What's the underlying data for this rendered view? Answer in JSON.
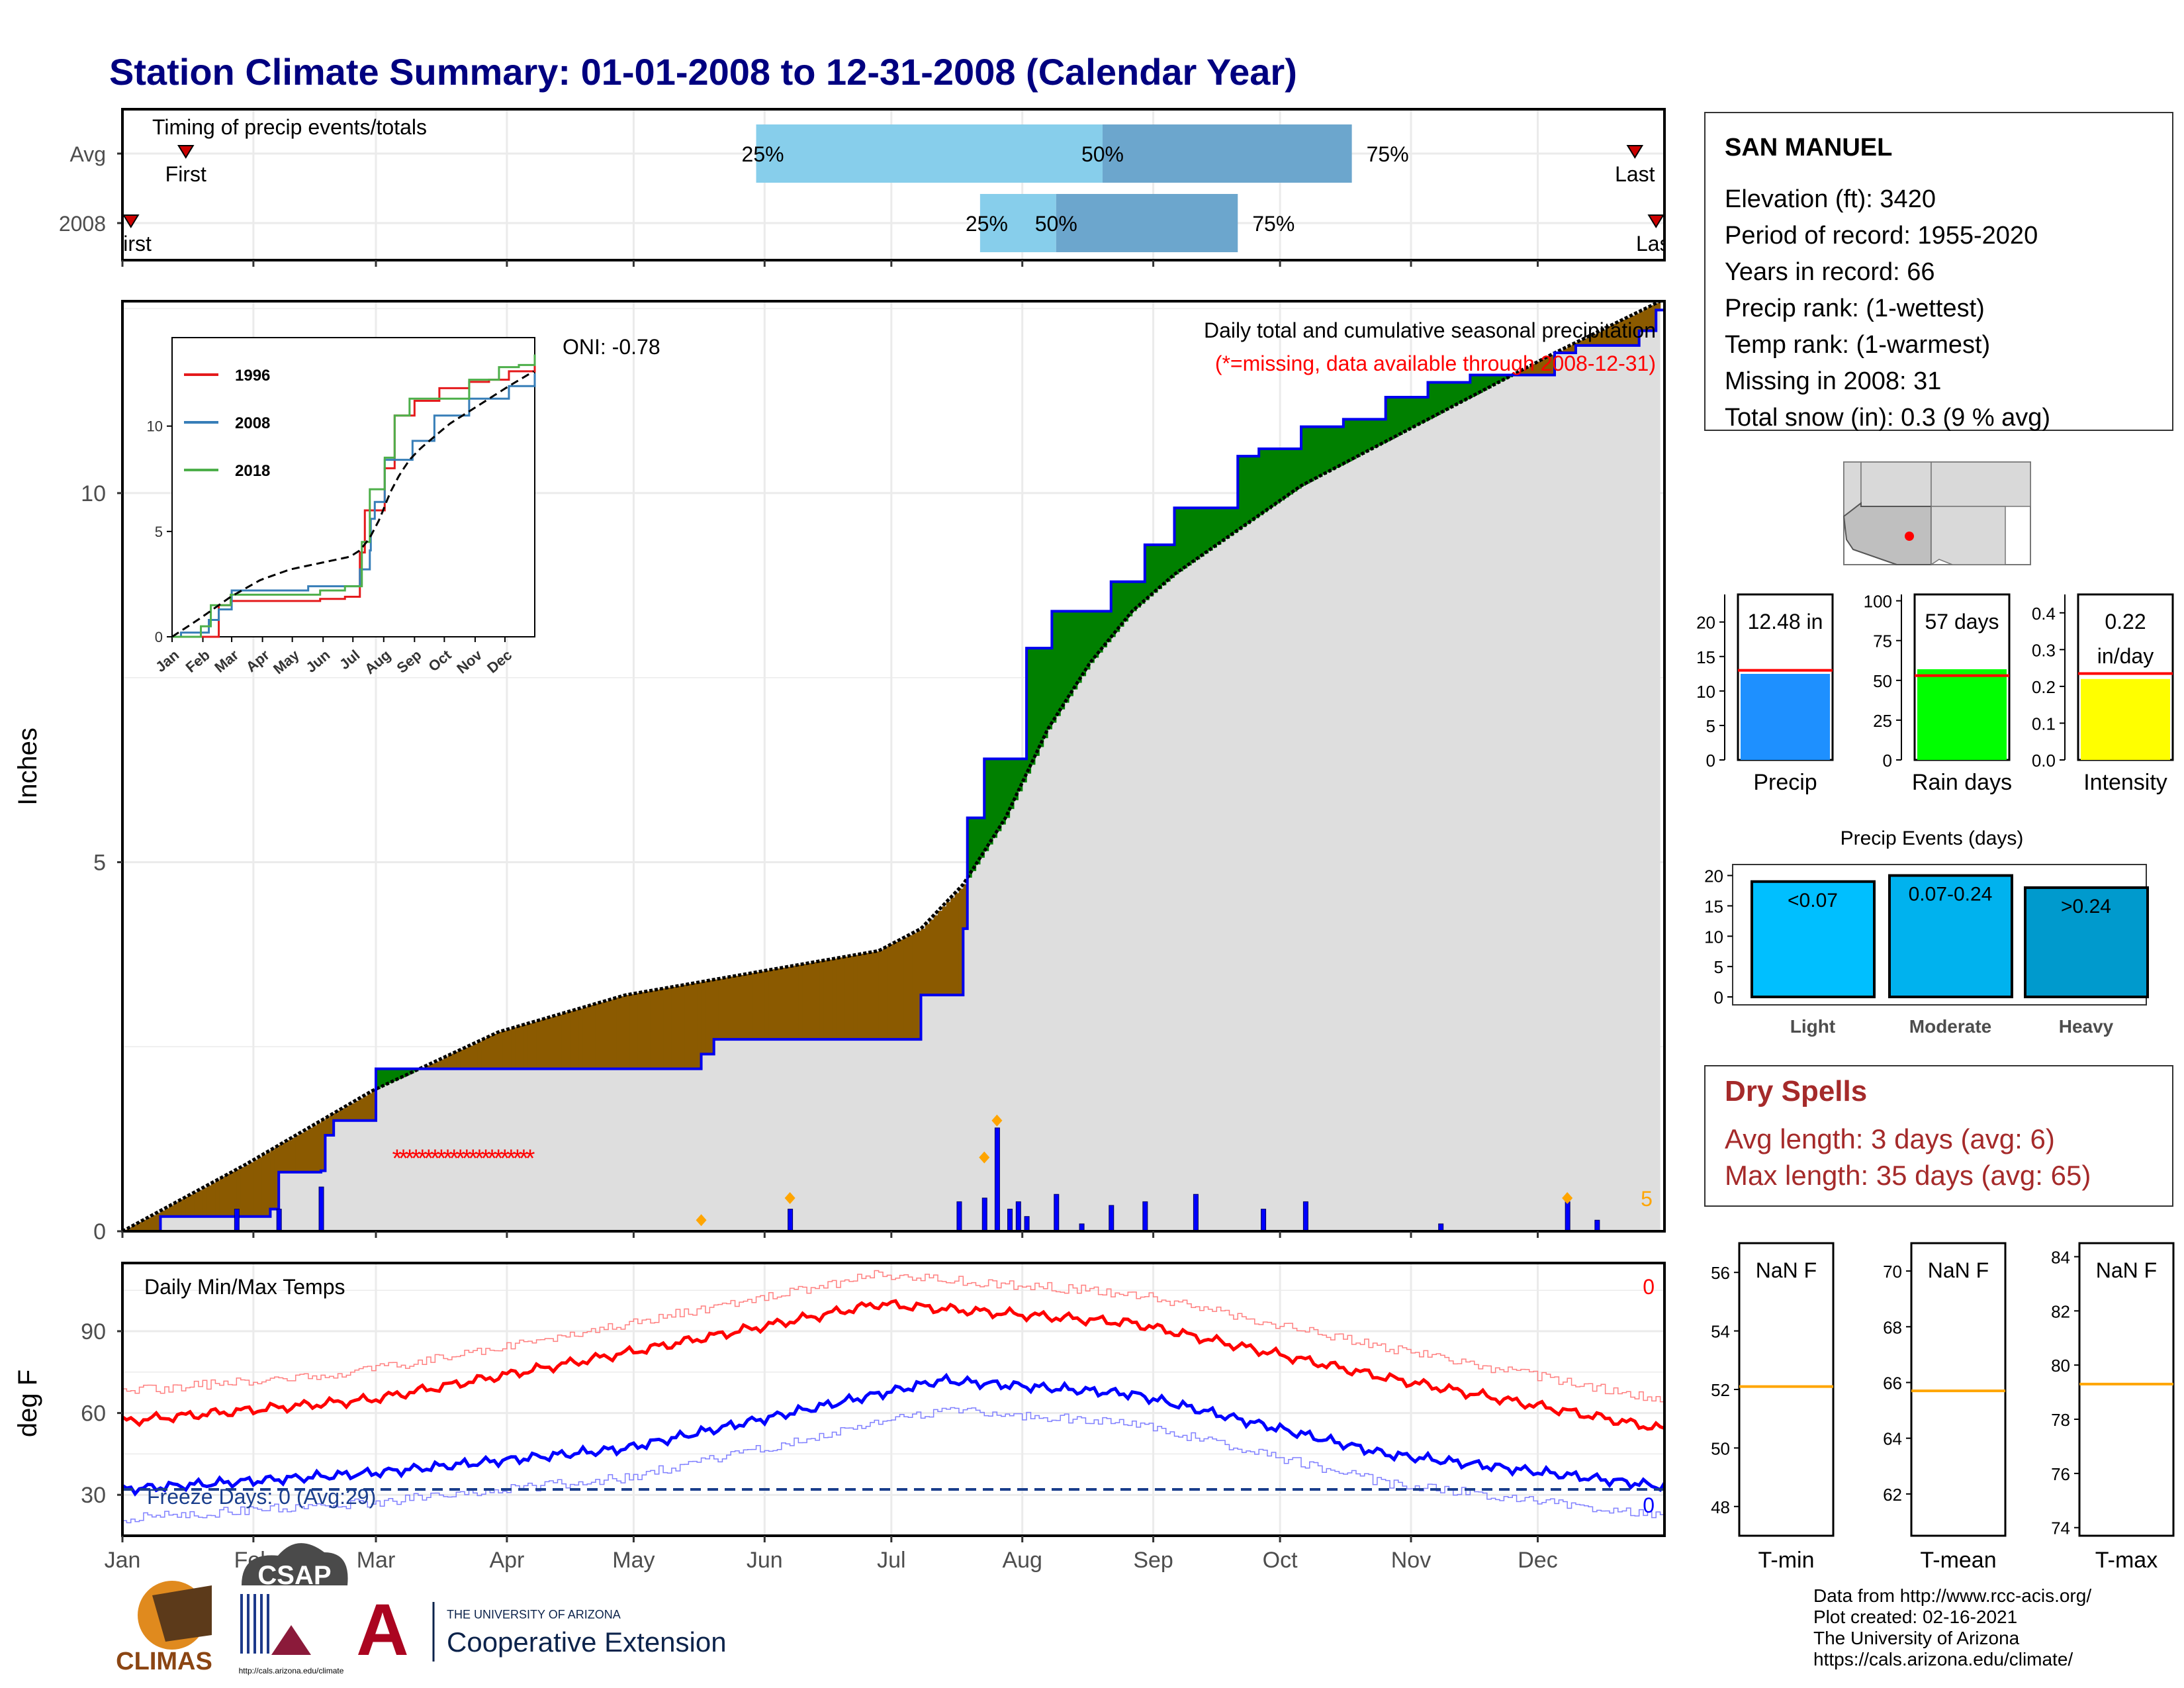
{
  "title": "Station Climate Summary: 01-01-2008 to 12-31-2008 (Calendar Year)",
  "months": [
    "Jan",
    "Feb",
    "Mar",
    "Apr",
    "May",
    "Jun",
    "Jul",
    "Aug",
    "Sep",
    "Oct",
    "Nov",
    "Dec"
  ],
  "timing": {
    "title": "Timing of precip events/totals",
    "rows": [
      "Avg",
      "2008"
    ],
    "first_label": "First",
    "last_label": "Last",
    "avg": {
      "first_day": 16,
      "last_day": 359,
      "p25_day": 151,
      "p50_day": 233,
      "p75_day": 292
    },
    "year": {
      "first_day": 3,
      "last_day": 364,
      "p25_day": 204,
      "p50_day": 222,
      "p75_day": 265
    },
    "p25_label": "25%",
    "p50_label": "50%",
    "p75_label": "75%"
  },
  "precip_panel": {
    "ylabel": "Inches",
    "oni": "ONI: -0.78",
    "annotation": "Daily total and cumulative seasonal precipitation",
    "missing_note": "(*=missing, data available through 2008-12-31)",
    "extreme_label": "5"
  },
  "inset": {
    "series": [
      "1996",
      "2008",
      "2018"
    ],
    "colors": [
      "#e41a1c",
      "#377eb8",
      "#4daf4a"
    ]
  },
  "temp_panel": {
    "title": "Daily Min/Max Temps",
    "ylabel": "deg F",
    "freeze": "Freeze Days: 0 (Avg:29)",
    "count_top": "0",
    "count_bottom": "0"
  },
  "station": {
    "name": "SAN MANUEL",
    "lines": [
      "Elevation (ft): 3420",
      "Period of record: 1955-2020",
      "Years in record: 66",
      "Precip rank:  (1-wettest)",
      "Temp rank:  (1-warmest)",
      "Missing in 2008: 31",
      "Total snow (in): 0.3 (9 % avg)"
    ]
  },
  "mini_bars": [
    {
      "label": "Precip",
      "value_label": "12.48 in",
      "value": 12.48,
      "avg": 13,
      "ymax": 24,
      "ticks": [
        0,
        5,
        10,
        15,
        20
      ],
      "color": "#1e90ff"
    },
    {
      "label": "Rain days",
      "value_label": "57 days",
      "value": 57,
      "avg": 53,
      "ymax": 104,
      "ticks": [
        0,
        25,
        50,
        75,
        100
      ],
      "color": "#00ff00"
    },
    {
      "label": "Intensity",
      "value_label": "0.22\nin/day",
      "value": 0.22,
      "avg": 0.235,
      "ymax": 0.45,
      "ticks": [
        0.0,
        0.1,
        0.2,
        0.3,
        0.4
      ],
      "color": "#ffff00"
    }
  ],
  "events": {
    "title": "Precip Events (days)",
    "categories": [
      "Light",
      "Moderate",
      "Heavy"
    ],
    "bar_labels": [
      "<0.07",
      "0.07-0.24",
      ">0.24"
    ],
    "values": [
      19,
      20,
      18
    ],
    "ticks": [
      0,
      5,
      10,
      15,
      20
    ]
  },
  "dry_spells": {
    "title": "Dry Spells",
    "avg": "Avg length: 3 days (avg: 6)",
    "max": "Max length: 35 days (avg: 65)"
  },
  "temp_boxes": [
    {
      "label": "T-min",
      "value": "NaN F",
      "ticks": [
        48,
        50,
        52,
        54,
        56
      ],
      "range": [
        47,
        57
      ],
      "line": 52.1
    },
    {
      "label": "T-mean",
      "value": "NaN F",
      "ticks": [
        62,
        64,
        66,
        68,
        70
      ],
      "range": [
        60.5,
        71
      ],
      "line": 65.7
    },
    {
      "label": "T-max",
      "value": "NaN F",
      "ticks": [
        74,
        76,
        78,
        80,
        82,
        84
      ],
      "range": [
        73.7,
        84.5
      ],
      "line": 79.3
    }
  ],
  "footer": [
    "Data from http://www.rcc-acis.org/",
    "Plot created: 02-16-2021",
    "The University of Arizona",
    "https://cals.arizona.edu/climate/"
  ],
  "logos": {
    "climas": "CLIMAS",
    "csap": "CSAP",
    "csap_url": "http://cals.arizona.edu/climate",
    "ua_small": "THE UNIVERSITY OF ARIZONA",
    "ua_big": "Cooperative Extension"
  },
  "chart_data": [
    {
      "type": "area",
      "title": "Daily total and cumulative seasonal precipitation",
      "ylabel": "Inches",
      "ylim": [
        0,
        12.6
      ],
      "yticks": [
        0,
        5,
        10
      ],
      "x_unit": "day of year 2008",
      "cumulative_2008": {
        "x": [
          1,
          10,
          36,
          38,
          48,
          49,
          51,
          61,
          138,
          141,
          190,
          200,
          201,
          205,
          215,
          221,
          235,
          243,
          250,
          265,
          270,
          280,
          290,
          300,
          310,
          320,
          340,
          345,
          360,
          364
        ],
        "y": [
          0.0,
          0.2,
          0.3,
          0.8,
          0.82,
          1.3,
          1.5,
          2.2,
          2.4,
          2.6,
          3.2,
          4.1,
          5.6,
          6.4,
          7.9,
          8.4,
          8.8,
          9.3,
          9.8,
          10.5,
          10.6,
          10.9,
          11.0,
          11.3,
          11.5,
          11.6,
          11.9,
          12.0,
          12.2,
          12.48
        ]
      },
      "cumulative_avg": {
        "x": [
          1,
          30,
          60,
          90,
          120,
          150,
          180,
          190,
          200,
          210,
          220,
          230,
          240,
          250,
          260,
          270,
          280,
          300,
          320,
          340,
          365
        ],
        "y": [
          0.0,
          0.9,
          1.9,
          2.7,
          3.2,
          3.5,
          3.8,
          4.1,
          4.7,
          5.6,
          6.8,
          7.7,
          8.4,
          8.9,
          9.3,
          9.7,
          10.1,
          10.7,
          11.3,
          11.9,
          12.6
        ]
      },
      "daily_bars": {
        "x": [
          28,
          38,
          48,
          159,
          199,
          205,
          208,
          211,
          213,
          215,
          222,
          228,
          235,
          243,
          255,
          271,
          281,
          313,
          343,
          350
        ],
        "y": [
          0.3,
          0.3,
          0.6,
          0.3,
          0.4,
          0.45,
          1.4,
          0.3,
          0.4,
          0.2,
          0.5,
          0.1,
          0.35,
          0.4,
          0.5,
          0.3,
          0.4,
          0.1,
          0.4,
          0.15
        ]
      },
      "missing_days": {
        "start": 66,
        "end": 98
      }
    },
    {
      "type": "line",
      "title": "Daily Min/Max Temps",
      "ylabel": "deg F",
      "ylim": [
        15,
        115
      ],
      "yticks": [
        30,
        60,
        90
      ],
      "freeze_line": 32,
      "avg_max": {
        "x": [
          1,
          60,
          120,
          180,
          240,
          300,
          366
        ],
        "y": [
          57,
          65,
          82,
          100,
          93,
          73,
          54
        ]
      },
      "avg_min": {
        "x": [
          1,
          60,
          120,
          195,
          240,
          300,
          366
        ],
        "y": [
          32,
          38,
          47,
          72,
          67,
          45,
          33
        ]
      }
    }
  ]
}
